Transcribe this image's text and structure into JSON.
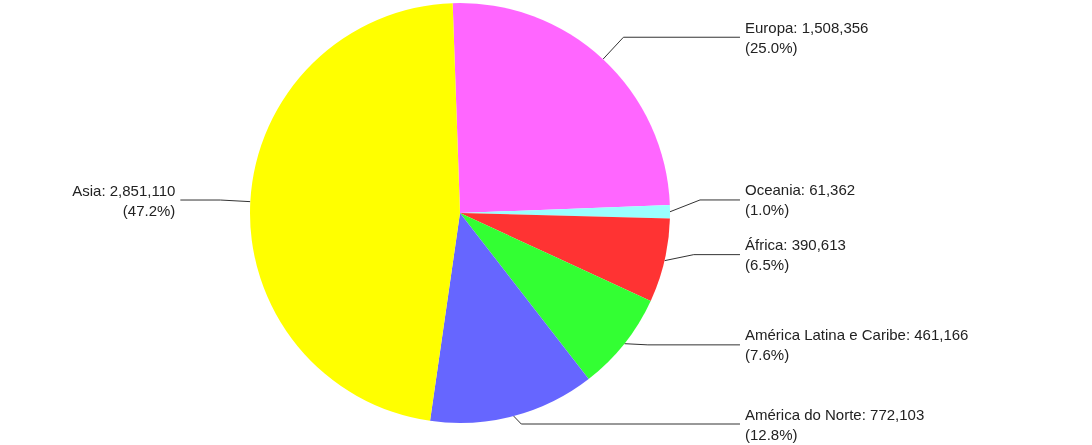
{
  "chart_data": {
    "type": "pie",
    "categories": [
      "Europa",
      "Oceania",
      "África",
      "América Latina e Caribe",
      "América do Norte",
      "Asia"
    ],
    "values": [
      1508356,
      61362,
      390613,
      461166,
      772103,
      2851110
    ],
    "value_labels": [
      "1,508,356\n(25.0%)",
      "61,362\n(1.0%)",
      "390,613\n(6.5%)",
      "461,166\n(7.6%)",
      "772,103\n(12.8%)",
      "2,851,110\n(47.2%)"
    ],
    "colors": [
      "#ff66ff",
      "#99ffff",
      "#ff3333",
      "#33ff33",
      "#6666ff",
      "#ffff00"
    ],
    "legend": false
  }
}
